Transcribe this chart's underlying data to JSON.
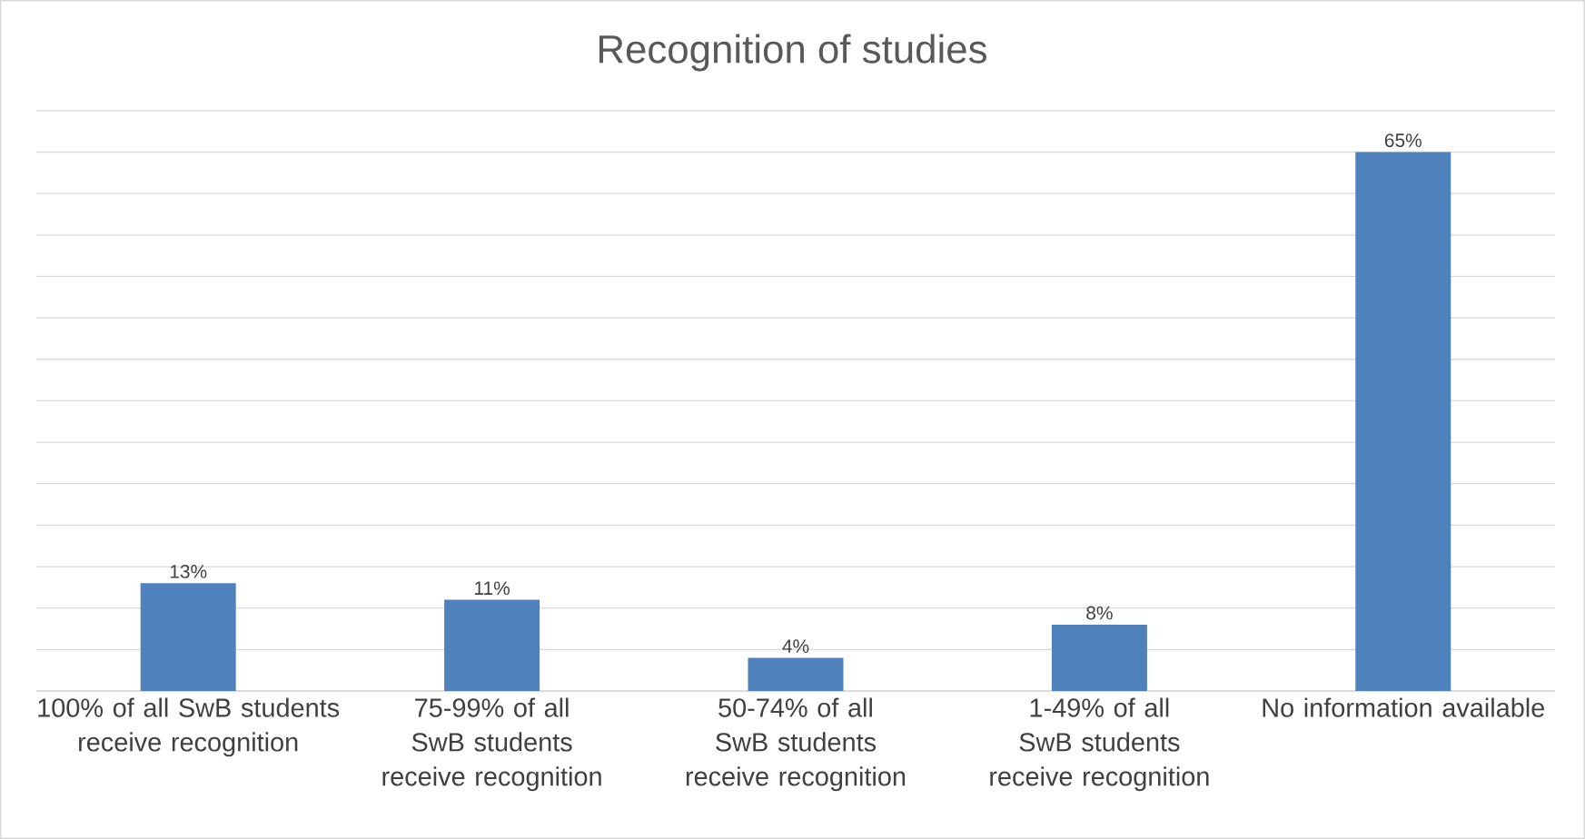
{
  "chart_data": {
    "type": "bar",
    "title": "Recognition of studies",
    "categories": [
      "100% of all SwB students receive recognition",
      "75-99% of all SwB students receive recognition",
      "50-74%  of all SwB students receive recognition",
      "1-49%  of all SwB students receive recognition",
      "No information available"
    ],
    "values": [
      13,
      11,
      4,
      8,
      65
    ],
    "value_labels": [
      "13%",
      "11%",
      "4%",
      "8%",
      "65%"
    ],
    "color": "#4f81bd",
    "grid": "y",
    "tick_labels": "x"
  }
}
